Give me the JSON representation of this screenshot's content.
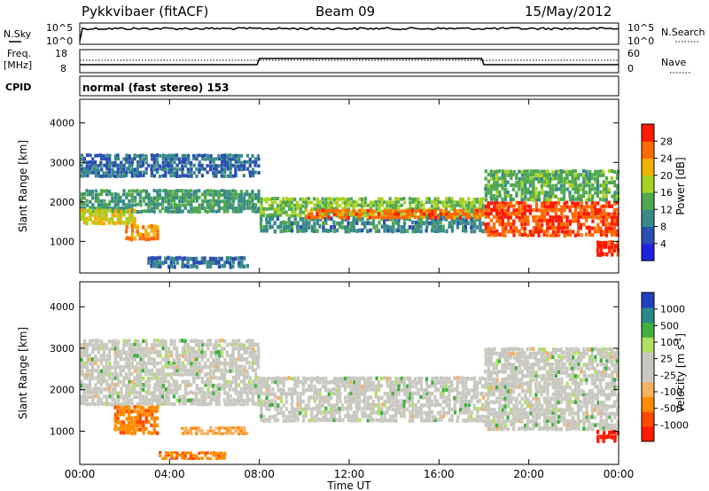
{
  "header": {
    "station": "Pykkvibaer (fitACF)",
    "beam": "Beam 09",
    "date": "15/May/2012"
  },
  "top_panels": {
    "nsky_label": "N.Sky",
    "nsky_ticks": [
      "10^5",
      "10^0"
    ],
    "nsearch_label": "N.Search",
    "nsearch_ticks": [
      "10^5",
      "10^0"
    ],
    "freq_label": "Freq.",
    "freq_unit": "[MHz]",
    "freq_ticks": [
      "18",
      "8"
    ],
    "nave_label": "Nave",
    "nave_ticks": [
      "60",
      "0"
    ],
    "cpid_label": "CPID",
    "cpid_text": "normal (fast stereo) 153"
  },
  "colors": {
    "power_scale": [
      "#2020e0",
      "#2a4fb0",
      "#3a8a8a",
      "#50a850",
      "#a8d020",
      "#f0b000",
      "#ff6a00",
      "#ff1a00"
    ],
    "velocity_scale": [
      "#ff1a00",
      "#ff4a00",
      "#ff8a00",
      "#f5b060",
      "#c8c8c0",
      "#c8c8c0",
      "#b0e060",
      "#40b040",
      "#2a8a8a",
      "#2040c0"
    ]
  },
  "chart_data": [
    {
      "type": "heatmap",
      "name": "power",
      "ylabel": "Slant Range [km]",
      "yticks": [
        "4000",
        "3000",
        "2000",
        "1000"
      ],
      "ylim": [
        200,
        4600
      ],
      "xlim": [
        0,
        24
      ],
      "colorbar_label": "Power [dB]",
      "colorbar_ticks": [
        "28",
        "24",
        "20",
        "16",
        "12",
        "8",
        "4"
      ],
      "clim": [
        0,
        32
      ],
      "bands": [
        {
          "t0": 0.0,
          "t1": 8.0,
          "r0": 2600,
          "r1": 3200,
          "value": 8
        },
        {
          "t0": 0.0,
          "t1": 8.0,
          "r0": 1700,
          "r1": 2300,
          "value": 12
        },
        {
          "t0": 0.0,
          "t1": 2.5,
          "r0": 1400,
          "r1": 1800,
          "value": 20
        },
        {
          "t0": 2.0,
          "t1": 3.5,
          "r0": 1000,
          "r1": 1400,
          "value": 24
        },
        {
          "t0": 3.0,
          "t1": 7.5,
          "r0": 300,
          "r1": 600,
          "value": 8
        },
        {
          "t0": 8.0,
          "t1": 18.0,
          "r0": 1600,
          "r1": 2100,
          "value": 16
        },
        {
          "t0": 8.0,
          "t1": 18.0,
          "r0": 1200,
          "r1": 1600,
          "value": 10
        },
        {
          "t0": 10.0,
          "t1": 18.0,
          "r0": 1550,
          "r1": 1800,
          "value": 26
        },
        {
          "t0": 18.0,
          "t1": 24.0,
          "r0": 1100,
          "r1": 2000,
          "value": 28
        },
        {
          "t0": 18.0,
          "t1": 24.0,
          "r0": 2000,
          "r1": 2800,
          "value": 14
        },
        {
          "t0": 23.0,
          "t1": 24.0,
          "r0": 600,
          "r1": 1000,
          "value": 30
        }
      ]
    },
    {
      "type": "heatmap",
      "name": "velocity",
      "ylabel": "Slant Range [km]",
      "yticks": [
        "4000",
        "3000",
        "2000",
        "1000"
      ],
      "ylim": [
        200,
        4600
      ],
      "xlim": [
        0,
        24
      ],
      "colorbar_label": "Velocity [m s",
      "colorbar_label_sup": "-1",
      "colorbar_label_end": "]",
      "colorbar_ticks": [
        "1000",
        "500",
        "100",
        "25",
        "-25",
        "-100",
        "-500",
        "-1000"
      ],
      "bands": [
        {
          "t0": 0.0,
          "t1": 8.0,
          "r0": 1600,
          "r1": 3200,
          "value": 0
        },
        {
          "t0": 1.5,
          "t1": 3.5,
          "r0": 900,
          "r1": 1600,
          "value": -300
        },
        {
          "t0": 3.5,
          "t1": 6.5,
          "r0": 300,
          "r1": 500,
          "value": -300
        },
        {
          "t0": 4.5,
          "t1": 7.5,
          "r0": 900,
          "r1": 1100,
          "value": -150
        },
        {
          "t0": 8.0,
          "t1": 18.0,
          "r0": 1200,
          "r1": 2300,
          "value": 0
        },
        {
          "t0": 18.0,
          "t1": 24.0,
          "r0": 1000,
          "r1": 3000,
          "value": 0
        },
        {
          "t0": 23.0,
          "t1": 24.0,
          "r0": 700,
          "r1": 1000,
          "value": -800
        }
      ]
    }
  ],
  "x_axis": {
    "ticks": [
      "00:00",
      "04:00",
      "08:00",
      "12:00",
      "16:00",
      "20:00",
      "00:00"
    ],
    "label": "Time UT"
  }
}
